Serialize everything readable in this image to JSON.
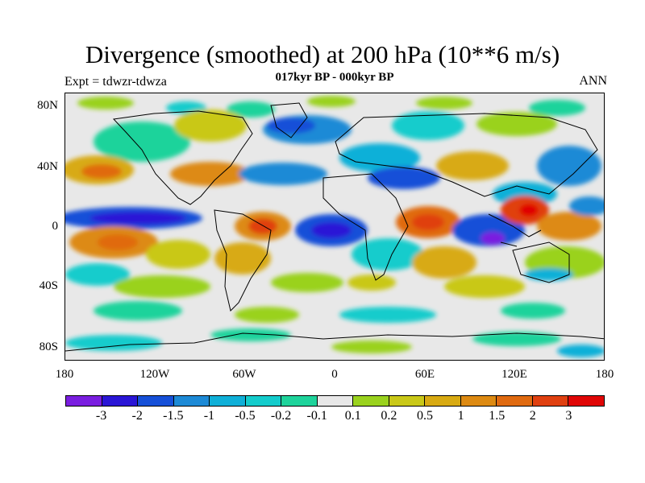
{
  "title": "Divergence (smoothed) at 200 hPa (10**6 m/s)",
  "subtitle": "017kyr BP - 000kyr BP",
  "left_label": "Expt = tdwzr-tdwza",
  "right_label": "ANN",
  "lat_ticks": [
    "80N",
    "40N",
    "0",
    "40S",
    "80S"
  ],
  "lon_ticks": [
    "180",
    "120W",
    "60W",
    "0",
    "60E",
    "120E",
    "180"
  ],
  "colorbar": {
    "colors": [
      "#7a1ee0",
      "#2a16d6",
      "#1650d8",
      "#1d8ad6",
      "#0fb0d8",
      "#14cccc",
      "#1ed39b",
      "#e8e8e8",
      "#9ad21e",
      "#c9c818",
      "#d8aa12",
      "#dd8a12",
      "#e06a10",
      "#e04010",
      "#e00606"
    ],
    "labels": [
      "-3",
      "-2",
      "-1.5",
      "-1",
      "-0.5",
      "-0.2",
      "-0.1",
      "0.1",
      "0.2",
      "0.5",
      "1",
      "1.5",
      "2",
      "3"
    ]
  }
}
